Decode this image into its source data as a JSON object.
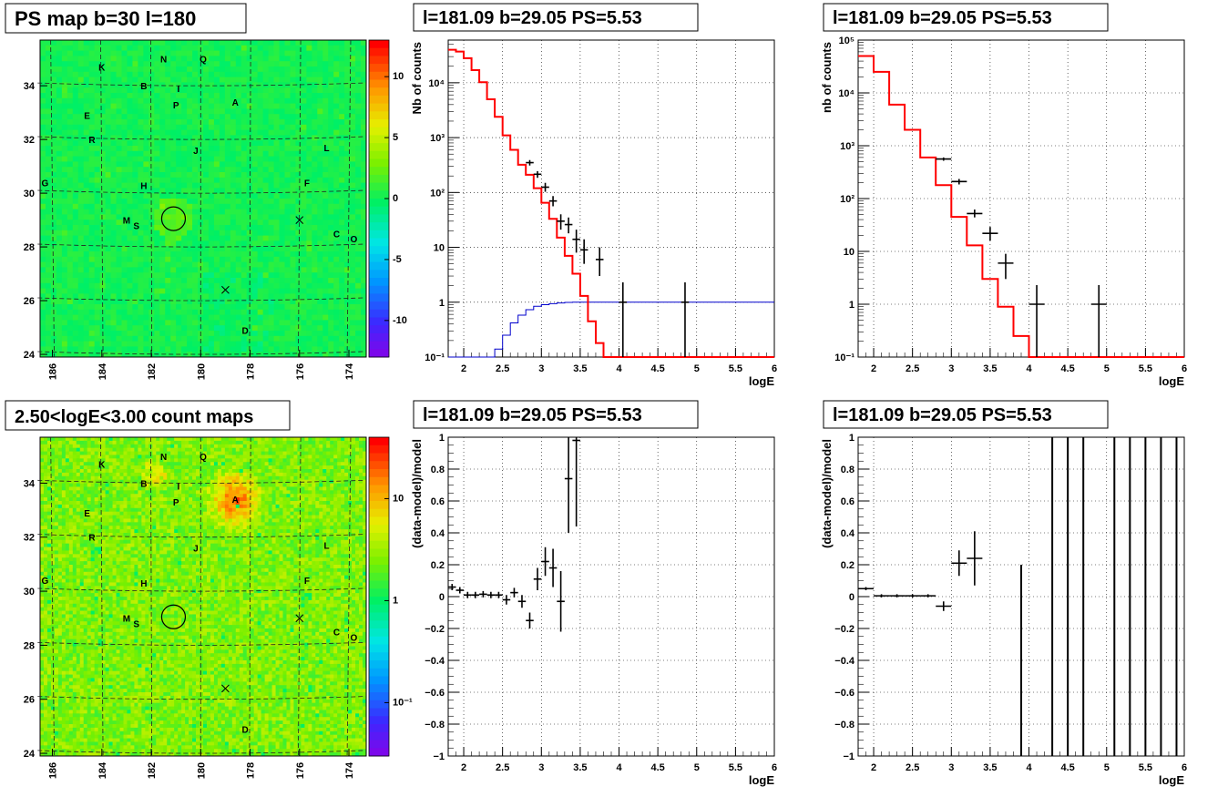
{
  "chart_data": [
    {
      "panel": "map-top",
      "type": "heatmap",
      "title": "PS map b=30 l=180",
      "x_ticks": [
        "186",
        "184",
        "182",
        "180",
        "178",
        "176",
        "174"
      ],
      "y_ticks": [
        "34",
        "32",
        "30",
        "28",
        "26",
        "24"
      ],
      "x_range": [
        186.5,
        173.3
      ],
      "y_range": [
        23.9,
        35.7
      ],
      "colorbar_ticks": [
        "10",
        "5",
        "0",
        "-5",
        "-10"
      ],
      "colorbar_values": [
        10,
        5,
        0,
        -5,
        -10
      ],
      "colorbar_range": [
        -13,
        13
      ],
      "labels": [
        {
          "t": "K",
          "l": 184.0,
          "b": 34.7
        },
        {
          "t": "N",
          "l": 181.5,
          "b": 35.0
        },
        {
          "t": "Q",
          "l": 179.9,
          "b": 35.0
        },
        {
          "t": "B",
          "l": 182.3,
          "b": 34.0
        },
        {
          "t": "I",
          "l": 180.9,
          "b": 33.9
        },
        {
          "t": "P",
          "l": 181.0,
          "b": 33.3
        },
        {
          "t": "A",
          "l": 178.6,
          "b": 33.4
        },
        {
          "t": "E",
          "l": 184.6,
          "b": 32.9
        },
        {
          "t": "R",
          "l": 184.4,
          "b": 32.0
        },
        {
          "t": "J",
          "l": 180.2,
          "b": 31.6
        },
        {
          "t": "L",
          "l": 174.9,
          "b": 31.7
        },
        {
          "t": "G",
          "l": 186.3,
          "b": 30.4
        },
        {
          "t": "H",
          "l": 182.3,
          "b": 30.3
        },
        {
          "t": "F",
          "l": 175.7,
          "b": 30.4
        },
        {
          "t": "M",
          "l": 183.0,
          "b": 29.0
        },
        {
          "t": "S",
          "l": 182.6,
          "b": 28.8
        },
        {
          "t": "C",
          "l": 174.5,
          "b": 28.5
        },
        {
          "t": "O",
          "l": 173.8,
          "b": 28.3
        },
        {
          "t": "D",
          "l": 178.2,
          "b": 24.9
        }
      ],
      "markers": [
        {
          "type": "circle",
          "l": 181.1,
          "b": 29.05
        },
        {
          "type": "x",
          "l": 176.0,
          "b": 29.0
        },
        {
          "type": "x",
          "l": 179.0,
          "b": 26.4
        }
      ]
    },
    {
      "panel": "map-bottom",
      "type": "heatmap",
      "title": "2.50<logE<3.00 count maps",
      "x_ticks": [
        "186",
        "184",
        "182",
        "180",
        "178",
        "176",
        "174"
      ],
      "y_ticks": [
        "34",
        "32",
        "30",
        "28",
        "26",
        "24"
      ],
      "colorbar_ticks": [
        "10",
        "1",
        "10⁻¹"
      ],
      "colorbar_range_log": [
        0.03,
        40
      ],
      "hotspot": {
        "label": "A",
        "l": 178.6,
        "b": 33.4
      }
    },
    {
      "panel": "spectrum-1",
      "type": "line",
      "title": "l=181.09 b=29.05 PS=5.53",
      "xlabel": "logE",
      "ylabel": "Nb of counts",
      "log_y": true,
      "xlim": [
        1.8,
        6.0
      ],
      "ylim": [
        0.1,
        60000
      ],
      "x_ticks": [
        "2",
        "2.5",
        "3",
        "3.5",
        "4",
        "4.5",
        "5",
        "5.5",
        "6"
      ],
      "y_ticks": [
        "10⁻¹",
        "1",
        "10",
        "10²",
        "10³",
        "10⁴"
      ],
      "model_bin_width": 0.1,
      "model_red": [
        40000,
        37000,
        28000,
        17000,
        10200,
        5000,
        2400,
        1100,
        600,
        320,
        210,
        120,
        65,
        33,
        15,
        7,
        3.3,
        1.3,
        0.45,
        0.18,
        0.1,
        0.1,
        0.1,
        0.1,
        0.1,
        0.1,
        0.1,
        0.1,
        0.1,
        0.1,
        0.1,
        0.1,
        0.1,
        0.1,
        0.1,
        0.1,
        0.1,
        0.1,
        0.1,
        0.1,
        0.1,
        0.1
      ],
      "model_blue": [
        0.05,
        0.05,
        0.05,
        0.05,
        0.05,
        0.1,
        0.14,
        0.25,
        0.42,
        0.58,
        0.73,
        0.84,
        0.9,
        0.94,
        0.97,
        0.99,
        1,
        1,
        1,
        1,
        1,
        1,
        1,
        1,
        1,
        1,
        1,
        1,
        1,
        1,
        1,
        1,
        1,
        1,
        1,
        1,
        1,
        1,
        1,
        1,
        1,
        1
      ],
      "data_points": [
        {
          "x": 2.85,
          "y": 350,
          "xerr": 0.05,
          "ylo": 310,
          "yhi": 390
        },
        {
          "x": 2.95,
          "y": 215,
          "xerr": 0.05,
          "ylo": 185,
          "yhi": 245
        },
        {
          "x": 3.05,
          "y": 125,
          "xerr": 0.05,
          "ylo": 103,
          "yhi": 150
        },
        {
          "x": 3.15,
          "y": 70,
          "xerr": 0.05,
          "ylo": 56,
          "yhi": 86
        },
        {
          "x": 3.25,
          "y": 30,
          "xerr": 0.05,
          "ylo": 21,
          "yhi": 40
        },
        {
          "x": 3.35,
          "y": 26,
          "xerr": 0.05,
          "ylo": 18,
          "yhi": 35
        },
        {
          "x": 3.45,
          "y": 14,
          "xerr": 0.05,
          "ylo": 8,
          "yhi": 21
        },
        {
          "x": 3.55,
          "y": 9,
          "xerr": 0.05,
          "ylo": 5,
          "yhi": 14
        },
        {
          "x": 3.75,
          "y": 6,
          "xerr": 0.05,
          "ylo": 3,
          "yhi": 10
        },
        {
          "x": 4.05,
          "y": 1,
          "xerr": 0.05,
          "ylo": 0.1,
          "yhi": 2.3
        },
        {
          "x": 4.85,
          "y": 1,
          "xerr": 0.05,
          "ylo": 0.1,
          "yhi": 2.3
        }
      ]
    },
    {
      "panel": "spectrum-2",
      "type": "line",
      "title": "l=181.09 b=29.05 PS=5.53",
      "xlabel": "logE",
      "ylabel": "nb of counts",
      "log_y": true,
      "xlim": [
        1.8,
        6.0
      ],
      "ylim": [
        0.1,
        100000
      ],
      "x_ticks": [
        "2",
        "2.5",
        "3",
        "3.5",
        "4",
        "4.5",
        "5",
        "5.5",
        "6"
      ],
      "y_ticks": [
        "10⁻¹",
        "1",
        "10",
        "10²",
        "10³",
        "10⁴",
        "10⁵"
      ],
      "model_bin_width": 0.2,
      "model_red": [
        50000,
        25000,
        6000,
        2000,
        600,
        180,
        45,
        13,
        3,
        0.9,
        0.25,
        0.1,
        0.1,
        0.1,
        0.1,
        0.1,
        0.1,
        0.1,
        0.1,
        0.1,
        0.1
      ],
      "data_points": [
        {
          "x": 2.9,
          "y": 560,
          "xerr": 0.1,
          "ylo": 520,
          "yhi": 600
        },
        {
          "x": 3.1,
          "y": 210,
          "xerr": 0.1,
          "ylo": 185,
          "yhi": 235
        },
        {
          "x": 3.3,
          "y": 52,
          "xerr": 0.1,
          "ylo": 44,
          "yhi": 62
        },
        {
          "x": 3.5,
          "y": 22,
          "xerr": 0.1,
          "ylo": 16,
          "yhi": 29
        },
        {
          "x": 3.7,
          "y": 6,
          "xerr": 0.1,
          "ylo": 3,
          "yhi": 9
        },
        {
          "x": 4.1,
          "y": 1,
          "xerr": 0.1,
          "ylo": 0.1,
          "yhi": 2.3
        },
        {
          "x": 4.9,
          "y": 1,
          "xerr": 0.1,
          "ylo": 0.1,
          "yhi": 2.3
        }
      ]
    },
    {
      "panel": "residual-1",
      "type": "scatter",
      "title": "l=181.09 b=29.05 PS=5.53",
      "xlabel": "logE",
      "ylabel": "(data-model)/model",
      "xlim": [
        1.8,
        6.0
      ],
      "ylim": [
        -1,
        1
      ],
      "x_ticks": [
        "2",
        "2.5",
        "3",
        "3.5",
        "4",
        "4.5",
        "5",
        "5.5",
        "6"
      ],
      "y_ticks": [
        "−1",
        "−0.8",
        "−0.6",
        "−0.4",
        "−0.2",
        "0",
        "0.2",
        "0.4",
        "0.6",
        "0.8",
        "1"
      ],
      "data_points": [
        {
          "x": 1.85,
          "y": 0.06,
          "xerr": 0.05,
          "yerr": 0.02
        },
        {
          "x": 1.95,
          "y": 0.04,
          "xerr": 0.05,
          "yerr": 0.02
        },
        {
          "x": 2.05,
          "y": 0.01,
          "xerr": 0.05,
          "yerr": 0.02
        },
        {
          "x": 2.15,
          "y": 0.01,
          "xerr": 0.05,
          "yerr": 0.02
        },
        {
          "x": 2.25,
          "y": 0.015,
          "xerr": 0.05,
          "yerr": 0.02
        },
        {
          "x": 2.35,
          "y": 0.01,
          "xerr": 0.05,
          "yerr": 0.02
        },
        {
          "x": 2.45,
          "y": 0.01,
          "xerr": 0.05,
          "yerr": 0.02
        },
        {
          "x": 2.55,
          "y": -0.02,
          "xerr": 0.05,
          "yerr": 0.03
        },
        {
          "x": 2.65,
          "y": 0.025,
          "xerr": 0.05,
          "yerr": 0.03
        },
        {
          "x": 2.75,
          "y": -0.03,
          "xerr": 0.05,
          "yerr": 0.04
        },
        {
          "x": 2.85,
          "y": -0.15,
          "xerr": 0.05,
          "yerr": 0.05
        },
        {
          "x": 2.95,
          "y": 0.11,
          "xerr": 0.05,
          "yerr": 0.07
        },
        {
          "x": 3.05,
          "y": 0.22,
          "xerr": 0.05,
          "yerr": 0.09
        },
        {
          "x": 3.15,
          "y": 0.18,
          "xerr": 0.05,
          "yerr": 0.12
        },
        {
          "x": 3.25,
          "y": -0.03,
          "xerr": 0.05,
          "yerr": 0.19
        },
        {
          "x": 3.35,
          "y": 0.74,
          "xerr": 0.05,
          "yerr": 0.34
        },
        {
          "x": 3.45,
          "y": 0.98,
          "xerr": 0.05,
          "yerr": 0.54
        }
      ]
    },
    {
      "panel": "residual-2",
      "type": "scatter",
      "title": "l=181.09 b=29.05 PS=5.53",
      "xlabel": "logE",
      "ylabel": "(data-model)/model",
      "xlim": [
        1.8,
        6.0
      ],
      "ylim": [
        -1,
        1
      ],
      "x_ticks": [
        "2",
        "2.5",
        "3",
        "3.5",
        "4",
        "4.5",
        "5",
        "5.5",
        "6"
      ],
      "y_ticks": [
        "−1",
        "−0.8",
        "−0.6",
        "−0.4",
        "−0.2",
        "0",
        "0.2",
        "0.4",
        "0.6",
        "0.8",
        "1"
      ],
      "data_points": [
        {
          "x": 1.9,
          "y": 0.05,
          "xerr": 0.1,
          "yerr": 0.01
        },
        {
          "x": 2.1,
          "y": 0.005,
          "xerr": 0.1,
          "yerr": 0.01
        },
        {
          "x": 2.3,
          "y": 0.005,
          "xerr": 0.1,
          "yerr": 0.01
        },
        {
          "x": 2.5,
          "y": 0.005,
          "xerr": 0.1,
          "yerr": 0.01
        },
        {
          "x": 2.7,
          "y": 0.005,
          "xerr": 0.1,
          "yerr": 0.01
        },
        {
          "x": 2.9,
          "y": -0.06,
          "xerr": 0.1,
          "yerr": 0.03
        },
        {
          "x": 3.1,
          "y": 0.21,
          "xerr": 0.1,
          "yerr": 0.08
        },
        {
          "x": 3.3,
          "y": 0.24,
          "xerr": 0.1,
          "yerr": 0.17
        }
      ],
      "vertical_lines": [
        {
          "x": 3.9,
          "ylo": -1,
          "yhi": 0.2
        },
        {
          "x": 4.3,
          "ylo": -1,
          "yhi": 1
        },
        {
          "x": 4.5,
          "ylo": -1,
          "yhi": 1
        },
        {
          "x": 4.7,
          "ylo": -1,
          "yhi": 1
        },
        {
          "x": 5.1,
          "ylo": -1,
          "yhi": 1
        },
        {
          "x": 5.3,
          "ylo": -1,
          "yhi": 1
        },
        {
          "x": 5.5,
          "ylo": -1,
          "yhi": 1
        },
        {
          "x": 5.7,
          "ylo": -1,
          "yhi": 1
        },
        {
          "x": 5.9,
          "ylo": -1,
          "yhi": 1
        }
      ]
    }
  ]
}
